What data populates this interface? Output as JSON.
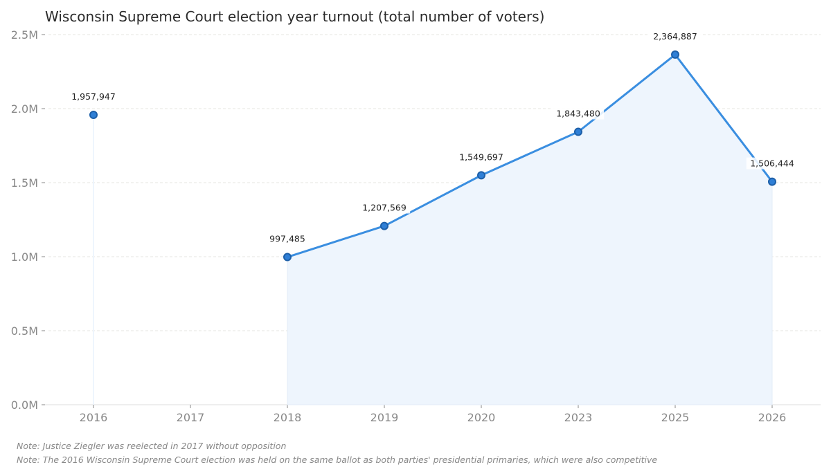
{
  "chart_data": {
    "type": "line",
    "title": "Wisconsin Supreme Court election year turnout (total number of voters)",
    "categories": [
      "2016",
      "2017",
      "2018",
      "2019",
      "2020",
      "2023",
      "2025",
      "2026"
    ],
    "values": [
      1957947,
      null,
      997485,
      1207569,
      1549697,
      1843480,
      2364887,
      1506444
    ],
    "data_labels": [
      "1,957,947",
      "",
      "997,485",
      "1,207,569",
      "1,549,697",
      "1,843,480",
      "2,364,887",
      "1,506,444"
    ],
    "ylim": [
      0,
      2500000
    ],
    "yticks": [
      0,
      500000,
      1000000,
      1500000,
      2000000,
      2500000
    ],
    "ytick_labels": [
      "0.0M",
      "0.5M",
      "1.0M",
      "1.5M",
      "2.0M",
      "2.5M"
    ],
    "xlabel": "",
    "ylabel": "",
    "grid": "horizontal dashed",
    "area_fill": true,
    "colors": {
      "line": "#3a8ee0",
      "marker": "#2f7fd6",
      "marker_edge": "#1d5fa8",
      "area": "#eef5fd"
    }
  },
  "notes": [
    "Note: Justice Ziegler was reelected in 2017 without opposition",
    "Note: The 2016 Wisconsin Supreme Court election was held on the same ballot as both parties' presidential primaries, which were also competitive"
  ]
}
